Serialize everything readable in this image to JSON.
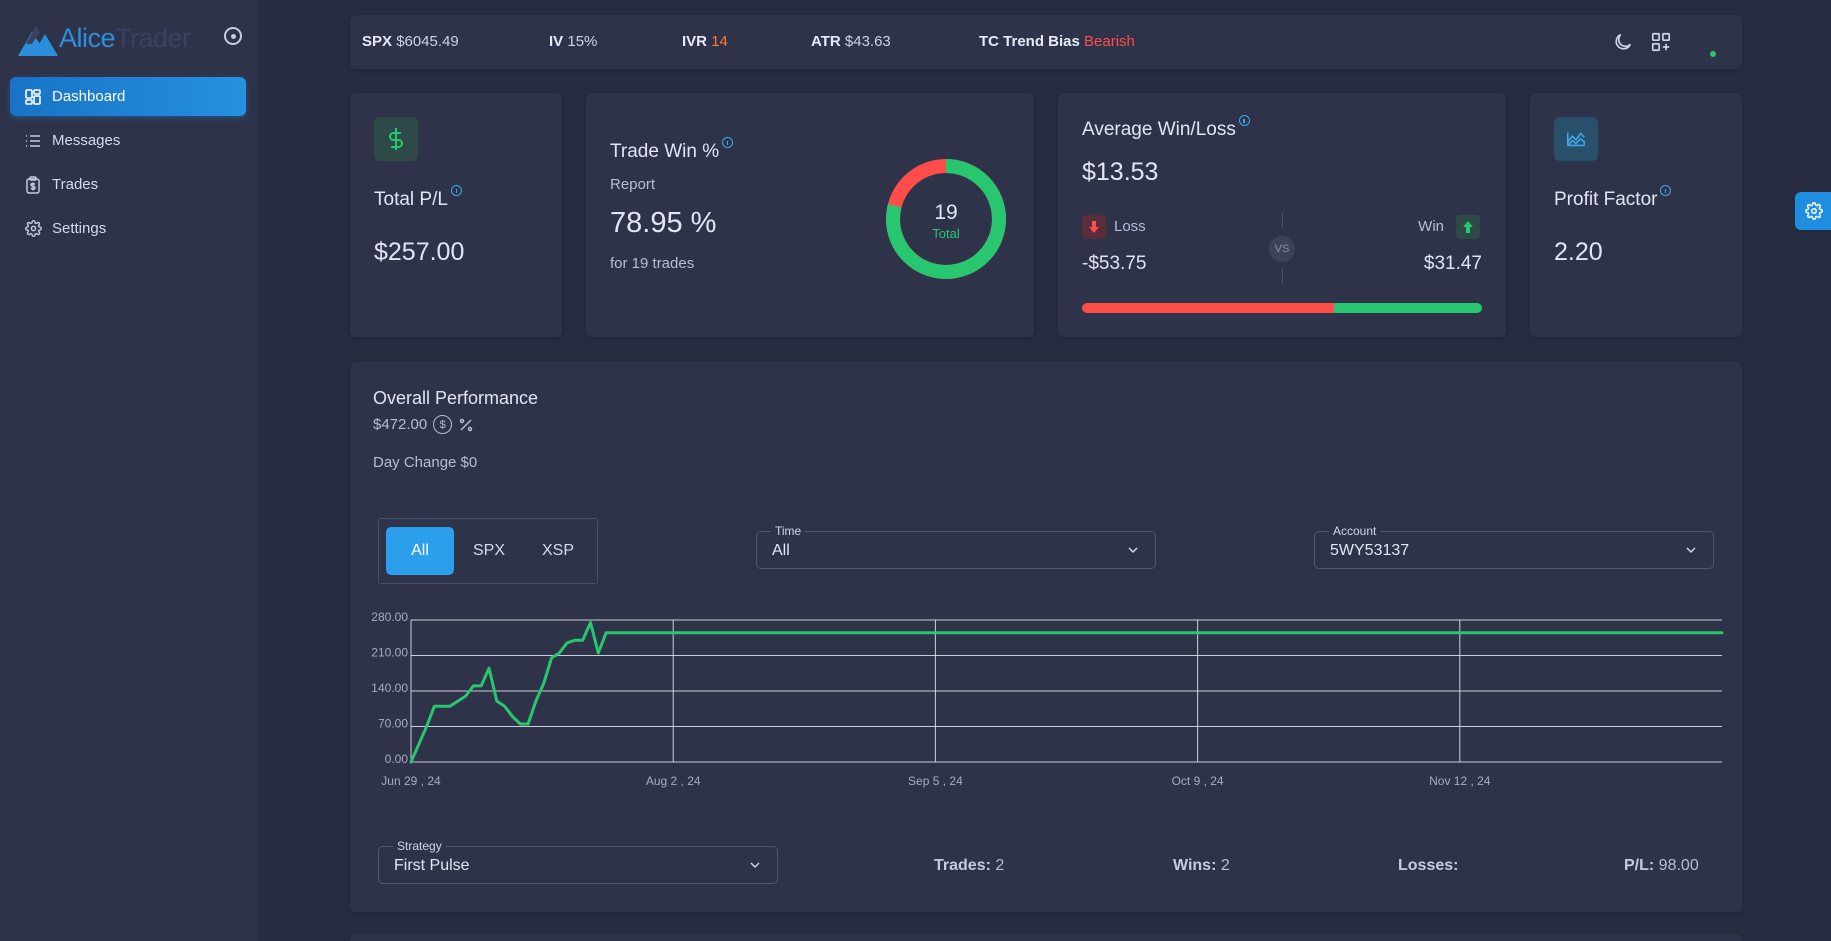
{
  "app": {
    "logo_text_a": "Alice",
    "logo_text_b": "Trader"
  },
  "sidebar": {
    "items": [
      {
        "label": "Dashboard",
        "icon": "dashboard-icon",
        "active": true
      },
      {
        "label": "Messages",
        "icon": "list-icon",
        "active": false
      },
      {
        "label": "Trades",
        "icon": "clipboard-dollar-icon",
        "active": false
      },
      {
        "label": "Settings",
        "icon": "gear-icon",
        "active": false
      }
    ]
  },
  "ticker": {
    "spx_label": "SPX",
    "spx_value": "$6045.49",
    "iv_label": "IV",
    "iv_value": "15%",
    "ivr_label": "IVR",
    "ivr_value": "14",
    "atr_label": "ATR",
    "atr_value": "$43.63",
    "trend_label": "TC Trend Bias",
    "trend_value": "Bearish"
  },
  "cards": {
    "total_pl": {
      "title": "Total P/L",
      "value": "$257.00",
      "icon": "dollar-icon"
    },
    "trade_win": {
      "title": "Trade Win %",
      "subtitle": "Report",
      "value": "78.95 %",
      "note": "for 19 trades",
      "donut_total": "19",
      "donut_label": "Total",
      "win_fraction": 0.7895
    },
    "avg_win_loss": {
      "title": "Average Win/Loss",
      "value": "$13.53",
      "loss_label": "Loss",
      "loss_value": "-$53.75",
      "win_label": "Win",
      "win_value": "$31.47",
      "vs": "VS",
      "loss_fraction": 0.63
    },
    "profit_factor": {
      "title": "Profit Factor",
      "value": "2.20",
      "icon": "chart-area-icon"
    }
  },
  "performance": {
    "title": "Overall Performance",
    "value": "$472.00",
    "day_change": "Day Change $0",
    "filters": [
      "All",
      "SPX",
      "XSP"
    ],
    "active_filter": "All",
    "time_label": "Time",
    "time_value": "All",
    "account_label": "Account",
    "account_value": "5WY53137",
    "strategy_label": "Strategy",
    "strategy_value": "First Pulse",
    "trades_label": "Trades:",
    "trades_value": "2",
    "wins_label": "Wins:",
    "wins_value": "2",
    "losses_label": "Losses:",
    "losses_value": "",
    "pl_label": "P/L:",
    "pl_value": "98.00"
  },
  "colors": {
    "accent": "#2b9fec",
    "win": "#28c76f",
    "loss": "#ff4d49",
    "card": "#2f3349",
    "bg": "#282c40"
  },
  "chart_data": {
    "type": "line",
    "ylim": [
      0,
      280
    ],
    "yticks": [
      "0.00",
      "70.00",
      "140.00",
      "210.00",
      "280.00"
    ],
    "xticks": [
      "Jun 29 , 24",
      "Aug 2 , 24",
      "Sep 5 , 24",
      "Oct 9 , 24",
      "Nov 12 , 24"
    ],
    "x_days": [
      0,
      1,
      2,
      3,
      4,
      5,
      6,
      7,
      8,
      9,
      10,
      11,
      12,
      13,
      14,
      15,
      16,
      17,
      18,
      19,
      20,
      21,
      22,
      23,
      24,
      25,
      26,
      27,
      28,
      29,
      30,
      31,
      32,
      33,
      34,
      35,
      36,
      37,
      38,
      40,
      50,
      80,
      120,
      168
    ],
    "values": [
      0,
      35,
      70,
      110,
      110,
      110,
      120,
      130,
      150,
      150,
      185,
      120,
      110,
      90,
      75,
      75,
      120,
      155,
      205,
      215,
      235,
      240,
      240,
      275,
      215,
      255,
      255,
      255,
      255,
      255,
      255,
      255,
      255,
      255,
      255,
      255,
      255,
      255,
      255,
      255,
      255,
      255,
      255,
      255
    ],
    "x_max_days": 168,
    "series_color": "#28c76f",
    "grid": true
  }
}
